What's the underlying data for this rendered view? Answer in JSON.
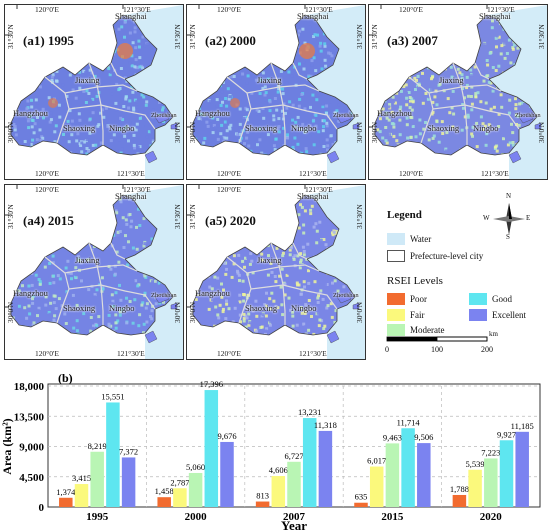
{
  "maps": [
    {
      "label": "(a1) 1995"
    },
    {
      "label": "(a2) 2000"
    },
    {
      "label": "(a3) 2007"
    },
    {
      "label": "(a4) 2015"
    },
    {
      "label": "(a5) 2020"
    }
  ],
  "coords": {
    "lon_left": "120°0'E",
    "lon_right": "121°30'E",
    "lat_top": "31°30'N",
    "lat_mid": "30°0'N"
  },
  "cities": [
    "Shanghai",
    "Jiaxing",
    "Hangzhou",
    "Shaoxing",
    "Ningbo",
    "Zhoushan"
  ],
  "legend": {
    "title": "Legend",
    "water": "Water",
    "boundary": "Prefecture-level city",
    "rsei_title": "RSEI  Levels",
    "levels": [
      {
        "name": "Poor",
        "color": "#f26b2f"
      },
      {
        "name": "Fair",
        "color": "#fbf97c"
      },
      {
        "name": "Moderate",
        "color": "#b9f5b4"
      },
      {
        "name": "Good",
        "color": "#5ee6f0"
      },
      {
        "name": "Excellent",
        "color": "#7b83f0"
      }
    ],
    "scale_labels": [
      "0",
      "100",
      "200"
    ],
    "scale_unit": "km",
    "north": {
      "n": "N",
      "s": "S",
      "e": "E",
      "w": "W"
    }
  },
  "chart_data": {
    "type": "bar",
    "label": "(b)",
    "categories": [
      "1995",
      "2000",
      "2007",
      "2015",
      "2020"
    ],
    "series": [
      {
        "name": "Poor",
        "values": [
          1374,
          1458,
          813,
          635,
          1788
        ]
      },
      {
        "name": "Fair",
        "values": [
          3415,
          2787,
          4606,
          6017,
          5539
        ]
      },
      {
        "name": "Moderate",
        "values": [
          8219,
          5060,
          6727,
          9463,
          7223
        ]
      },
      {
        "name": "Good",
        "values": [
          15551,
          17396,
          13231,
          11714,
          9927
        ]
      },
      {
        "name": "Excellent",
        "values": [
          7372,
          9676,
          11318,
          9506,
          11185
        ]
      }
    ],
    "value_labels": [
      [
        "1,374",
        "1,458",
        "813",
        "635",
        "1,788"
      ],
      [
        "3,415",
        "2,787",
        "4,606",
        "6,017",
        "5,539"
      ],
      [
        "8,219",
        "5,060",
        "6,727",
        "9,463",
        "7,223"
      ],
      [
        "15,551",
        "17,396",
        "13,231",
        "11,714",
        "9,927"
      ],
      [
        "7,372",
        "9,676",
        "11,318",
        "9,506",
        "11,185"
      ]
    ],
    "xlabel": "Year",
    "ylabel": "Area (km²)",
    "ylim": [
      0,
      18000
    ],
    "yticks": [
      "0",
      "4,500",
      "9,000",
      "13,500",
      "18,000"
    ],
    "ytick_values": [
      0,
      4500,
      9000,
      13500,
      18000
    ],
    "grid": true
  }
}
